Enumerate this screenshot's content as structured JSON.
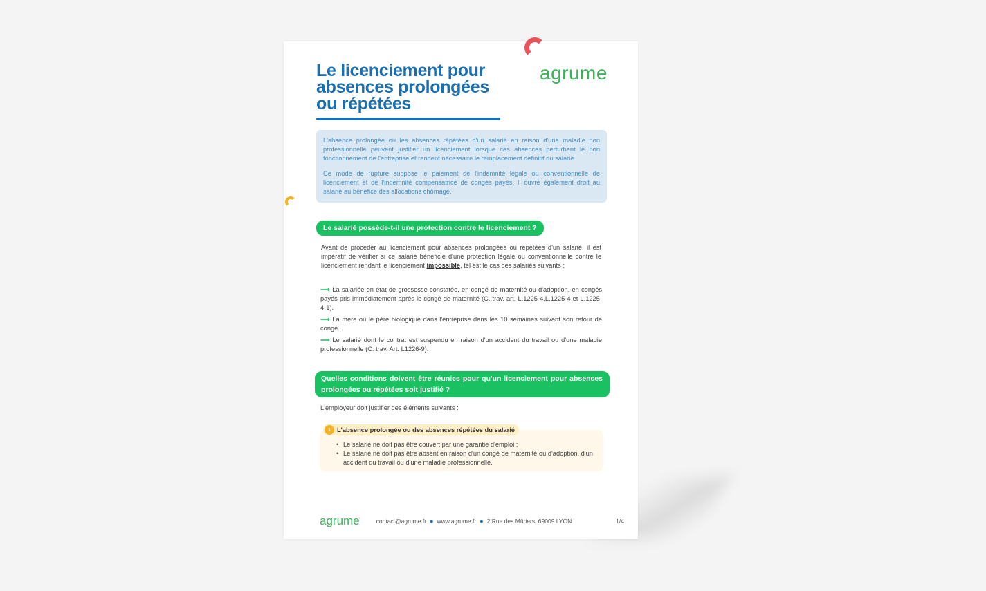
{
  "title_lines": [
    "Le licenciement pour",
    "absences prolongées",
    "ou répétées"
  ],
  "logo": "agrume",
  "intro": [
    "L'absence prolongée ou les absences répétées d'un salarié en raison d'une maladie non professionnelle peuvent justifier un licenciement lorsque ces absences perturbent le bon fonctionnement de l'entreprise et rendent nécessaire le remplacement définitif du salarié.",
    "Ce mode de rupture suppose le paiement de l'indemnité légale ou conventionnelle de licenciement et de l'indemnité compensatrice de congés payés. Il ouvre également droit au salarié au bénéfice des allocations chômage."
  ],
  "section1": {
    "heading": "Le salarié possède-t-il une protection contre le licenciement ?",
    "body_before": "Avant de procéder au licenciement pour absences prolongées ou répétées d'un salarié, il est impératif de vérifier si ce salarié bénéficie d'une protection légale ou conventionnelle contre le licenciement rendant le licenciement ",
    "body_bold": "impossible",
    "body_after": ", tel est le cas des salariés suivants :",
    "items": [
      "La salariée en état de grossesse constatée, en congé de maternité ou d'adoption, en congés payés pris immédiatement après le congé de maternité (C. trav. art. L.1225-4,L.1225-4 et L.1225-4-1).",
      "La mère ou le père biologique dans l'entreprise dans les 10 semaines suivant son retour de congé.",
      "Le salarié dont le contrat est suspendu en raison d'un accident du travail ou d'une maladie professionnelle (C. trav. Art. L1226-9)."
    ]
  },
  "section2": {
    "heading": "Quelles conditions doivent être réunies pour qu'un licenciement pour absences prolongées ou répétées soit justifié ?",
    "intro": "L'employeur doit justifier des éléments suivants :",
    "point_number": "1",
    "point_title": "L'absence prolongée ou des absences répétées du salarié",
    "bullets": [
      "Le salarié ne doit pas être couvert par une garantie d'emploi ;",
      "Le salarié ne doit pas être absent en raison d'un congé de maternité ou d'adoption, d'un accident du travail ou d'une maladie professionnelle."
    ]
  },
  "footer": {
    "logo": "agrume",
    "email": "contact@agrume.fr",
    "website": "www.agrume.fr",
    "address": "2 Rue des Mûriers, 69009 LYON",
    "page": "1/4"
  },
  "colors": {
    "title": "#1a6fb0",
    "heading_green": "#19c161",
    "logo_green": "#3bb25a",
    "intro_bg": "#d9e8f3"
  }
}
